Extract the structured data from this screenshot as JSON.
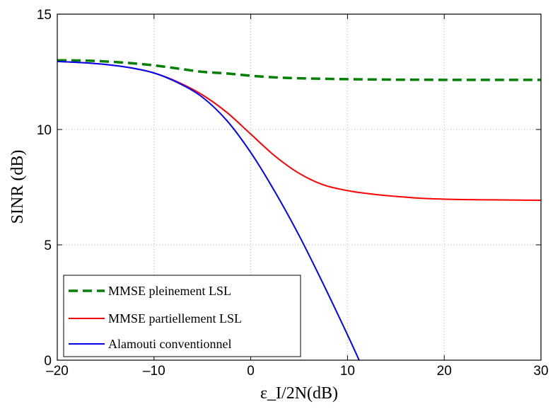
{
  "chart_data": {
    "type": "line",
    "xlabel": "ε_I/2N(dB)",
    "ylabel": "SINR (dB)",
    "xlim": [
      -20,
      30
    ],
    "ylim": [
      0,
      15
    ],
    "x_ticks": [
      "-20",
      "-10",
      "0",
      "10",
      "20",
      "30"
    ],
    "y_ticks": [
      "0",
      "5",
      "10",
      "15"
    ],
    "grid": true,
    "legend_position": "bottom-left",
    "series": [
      {
        "name": "MMSE pleinement LSL",
        "color": "#008000",
        "dash": "dashed",
        "x": [
          -20,
          -17.5,
          -15,
          -12.5,
          -10,
          -7.5,
          -5,
          -2.5,
          0,
          2.5,
          5,
          7.5,
          10,
          12.5,
          15,
          17.5,
          20,
          22.5,
          25,
          27.5,
          30
        ],
        "y": [
          13.0,
          12.99,
          12.95,
          12.88,
          12.78,
          12.64,
          12.5,
          12.43,
          12.33,
          12.26,
          12.22,
          12.2,
          12.18,
          12.17,
          12.16,
          12.16,
          12.15,
          12.15,
          12.15,
          12.15,
          12.15
        ]
      },
      {
        "name": "MMSE partiellement LSL",
        "color": "#ff0000",
        "dash": "solid",
        "x": [
          -20,
          -17.5,
          -15,
          -12.5,
          -10,
          -7.5,
          -5,
          -2.5,
          0,
          2.5,
          5,
          7.5,
          10,
          12.5,
          15,
          17.5,
          20,
          22.5,
          25,
          27.5,
          30
        ],
        "y": [
          12.95,
          12.9,
          12.82,
          12.68,
          12.45,
          12.05,
          11.5,
          10.75,
          9.8,
          8.85,
          8.1,
          7.6,
          7.35,
          7.2,
          7.1,
          7.02,
          6.98,
          6.96,
          6.95,
          6.94,
          6.93
        ]
      },
      {
        "name": "Alamouti conventionnel",
        "color": "#0000ff",
        "dash": "solid",
        "x": [
          -20,
          -17.5,
          -15,
          -12.5,
          -10,
          -7.5,
          -5,
          -2.5,
          0,
          2.5,
          5,
          7.5,
          10,
          11.2
        ],
        "y": [
          12.95,
          12.9,
          12.82,
          12.68,
          12.45,
          12.02,
          11.4,
          10.4,
          9.0,
          7.3,
          5.4,
          3.3,
          1.1,
          0.0
        ]
      }
    ]
  }
}
